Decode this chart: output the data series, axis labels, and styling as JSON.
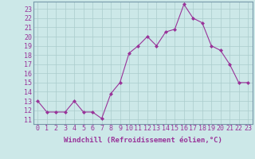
{
  "x": [
    0,
    1,
    2,
    3,
    4,
    5,
    6,
    7,
    8,
    9,
    10,
    11,
    12,
    13,
    14,
    15,
    16,
    17,
    18,
    19,
    20,
    21,
    22,
    23
  ],
  "y": [
    13,
    11.8,
    11.8,
    11.8,
    13,
    11.8,
    11.8,
    11.1,
    13.8,
    15,
    18.2,
    19,
    20,
    19,
    20.5,
    20.8,
    23.5,
    22,
    21.5,
    19,
    18.5,
    17,
    15,
    15
  ],
  "line_color": "#993399",
  "marker_color": "#993399",
  "bg_color": "#cce8e8",
  "grid_color": "#aacccc",
  "border_color": "#7799aa",
  "xlabel": "Windchill (Refroidissement éolien,°C)",
  "xlabel_color": "#993399",
  "ylim": [
    10.5,
    23.8
  ],
  "yticks": [
    11,
    12,
    13,
    14,
    15,
    16,
    17,
    18,
    19,
    20,
    21,
    22,
    23
  ],
  "xticks": [
    0,
    1,
    2,
    3,
    4,
    5,
    6,
    7,
    8,
    9,
    10,
    11,
    12,
    13,
    14,
    15,
    16,
    17,
    18,
    19,
    20,
    21,
    22,
    23
  ],
  "tick_color": "#993399",
  "font_size": 6.5
}
